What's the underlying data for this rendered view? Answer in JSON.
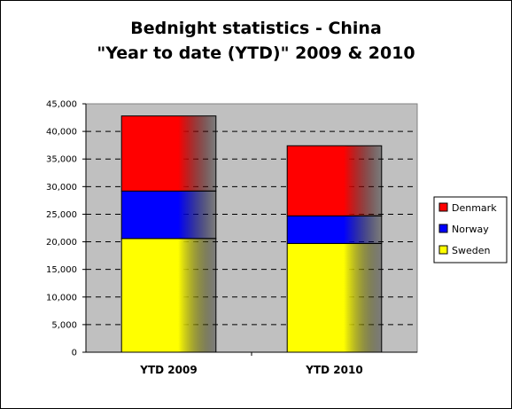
{
  "chart_data": {
    "type": "bar",
    "stacked": true,
    "title_lines": [
      "Bednight statistics - China",
      "\"Year to date (YTD)\" 2009 & 2010"
    ],
    "categories": [
      "YTD 2009",
      "YTD 2010"
    ],
    "series": [
      {
        "name": "Sweden",
        "values": [
          20600,
          19700
        ],
        "color": "#ffff00"
      },
      {
        "name": "Norway",
        "values": [
          8600,
          5000
        ],
        "color": "#0000ff"
      },
      {
        "name": "Denmark",
        "values": [
          13600,
          12700
        ],
        "color": "#ff0000"
      }
    ],
    "legend_order": [
      "Denmark",
      "Norway",
      "Sweden"
    ],
    "ylim": [
      0,
      45000
    ],
    "yticks": [
      "0",
      "5,000",
      "10,000",
      "15,000",
      "20,000",
      "25,000",
      "30,000",
      "35,000",
      "40,000",
      "45,000"
    ],
    "gridlines": "dashed horizontal",
    "plot_background": "#c0c0c0",
    "legend_position": "right"
  }
}
